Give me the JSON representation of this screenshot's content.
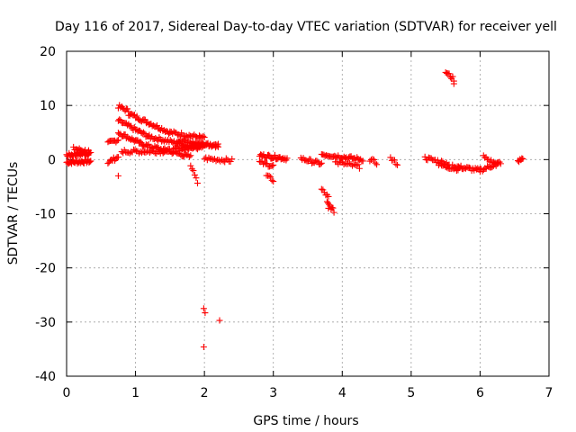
{
  "chart_data": {
    "type": "scatter",
    "title": "Day 116 of 2017, Sidereal Day-to-day VTEC variation (SDTVAR) for receiver yell",
    "xlabel": "GPS time / hours",
    "ylabel": "SDTVAR / TECUs",
    "xlim": [
      0,
      7
    ],
    "ylim": [
      -40,
      20
    ],
    "xticks": [
      0,
      1,
      2,
      3,
      4,
      5,
      6,
      7
    ],
    "yticks": [
      -40,
      -30,
      -20,
      -10,
      0,
      10,
      20
    ],
    "grid": true,
    "marker": "+",
    "color": "#ff0000",
    "series": [
      {
        "name": "SDTVAR",
        "segments": [
          {
            "x0": 0.0,
            "x1": 0.35,
            "y0": -0.5,
            "y1": -0.3,
            "n": 30
          },
          {
            "x0": 0.0,
            "x1": 0.35,
            "y0": 0.8,
            "y1": 1.2,
            "n": 30
          },
          {
            "x0": 0.1,
            "x1": 0.32,
            "y0": 2.0,
            "y1": 1.5,
            "n": 14
          },
          {
            "x0": 0.6,
            "x1": 0.75,
            "y0": 3.0,
            "y1": 3.7,
            "n": 10
          },
          {
            "x0": 0.6,
            "x1": 0.75,
            "y0": -0.5,
            "y1": 0.5,
            "n": 10
          },
          {
            "x0": 0.75,
            "x1": 0.9,
            "y0": 9.8,
            "y1": 9.0,
            "n": 10
          },
          {
            "x0": 0.9,
            "x1": 1.5,
            "y0": 8.5,
            "y1": 5.0,
            "n": 36
          },
          {
            "x0": 1.5,
            "x1": 2.0,
            "y0": 5.0,
            "y1": 4.0,
            "n": 28
          },
          {
            "x0": 0.75,
            "x1": 1.2,
            "y0": 7.2,
            "y1": 4.2,
            "n": 28
          },
          {
            "x0": 1.2,
            "x1": 1.9,
            "y0": 4.2,
            "y1": 2.2,
            "n": 40
          },
          {
            "x0": 0.75,
            "x1": 1.1,
            "y0": 5.0,
            "y1": 2.8,
            "n": 22
          },
          {
            "x0": 1.1,
            "x1": 1.8,
            "y0": 2.8,
            "y1": 0.5,
            "n": 40
          },
          {
            "x0": 0.8,
            "x1": 1.4,
            "y0": 1.5,
            "y1": 1.5,
            "n": 32
          },
          {
            "x0": 1.4,
            "x1": 2.2,
            "y0": 1.5,
            "y1": 3.0,
            "n": 44
          },
          {
            "x0": 1.6,
            "x1": 2.2,
            "y0": 3.5,
            "y1": 2.5,
            "n": 32
          },
          {
            "x0": 1.7,
            "x1": 2.0,
            "y0": 2.2,
            "y1": 2.8,
            "n": 18
          },
          {
            "x0": 1.8,
            "x1": 1.9,
            "y0": -1.0,
            "y1": -4.3,
            "n": 6
          },
          {
            "x0": 2.0,
            "x1": 2.4,
            "y0": 0.2,
            "y1": -0.2,
            "n": 20
          },
          {
            "x0": 2.8,
            "x1": 3.2,
            "y0": 0.8,
            "y1": 0.2,
            "n": 28
          },
          {
            "x0": 2.8,
            "x1": 3.0,
            "y0": -0.5,
            "y1": -1.2,
            "n": 12
          },
          {
            "x0": 2.9,
            "x1": 3.0,
            "y0": -3.0,
            "y1": -3.8,
            "n": 6
          },
          {
            "x0": 3.4,
            "x1": 3.7,
            "y0": 0.2,
            "y1": -0.8,
            "n": 18
          },
          {
            "x0": 3.7,
            "x1": 3.8,
            "y0": -5.5,
            "y1": -7.0,
            "n": 6
          },
          {
            "x0": 3.78,
            "x1": 3.88,
            "y0": -8.0,
            "y1": -9.5,
            "n": 8
          },
          {
            "x0": 3.7,
            "x1": 4.3,
            "y0": 1.0,
            "y1": 0.0,
            "n": 36
          },
          {
            "x0": 3.9,
            "x1": 4.25,
            "y0": -0.5,
            "y1": -1.3,
            "n": 18
          },
          {
            "x0": 4.4,
            "x1": 4.5,
            "y0": 0.0,
            "y1": -0.6,
            "n": 6
          },
          {
            "x0": 4.7,
            "x1": 4.8,
            "y0": 0.2,
            "y1": -0.8,
            "n": 6
          },
          {
            "x0": 5.2,
            "x1": 5.55,
            "y0": 0.3,
            "y1": -0.8,
            "n": 20
          },
          {
            "x0": 5.4,
            "x1": 5.7,
            "y0": -1.0,
            "y1": -1.8,
            "n": 16
          },
          {
            "x0": 5.5,
            "x1": 5.62,
            "y0": 16.2,
            "y1": 14.8,
            "n": 8
          },
          {
            "x0": 5.6,
            "x1": 6.0,
            "y0": -1.2,
            "y1": -2.0,
            "n": 24
          },
          {
            "x0": 6.0,
            "x1": 6.3,
            "y0": -2.0,
            "y1": -0.5,
            "n": 18
          },
          {
            "x0": 6.05,
            "x1": 6.25,
            "y0": 0.5,
            "y1": -1.0,
            "n": 12
          },
          {
            "x0": 6.55,
            "x1": 6.62,
            "y0": -0.5,
            "y1": 0.3,
            "n": 6
          }
        ],
        "points": [
          [
            0.75,
            -3.0
          ],
          [
            1.99,
            -27.5
          ],
          [
            2.01,
            -28.3
          ],
          [
            2.22,
            -29.7
          ],
          [
            1.99,
            -34.6
          ],
          [
            5.62,
            14.0
          ],
          [
            3.8,
            -9.0
          ]
        ]
      }
    ]
  }
}
